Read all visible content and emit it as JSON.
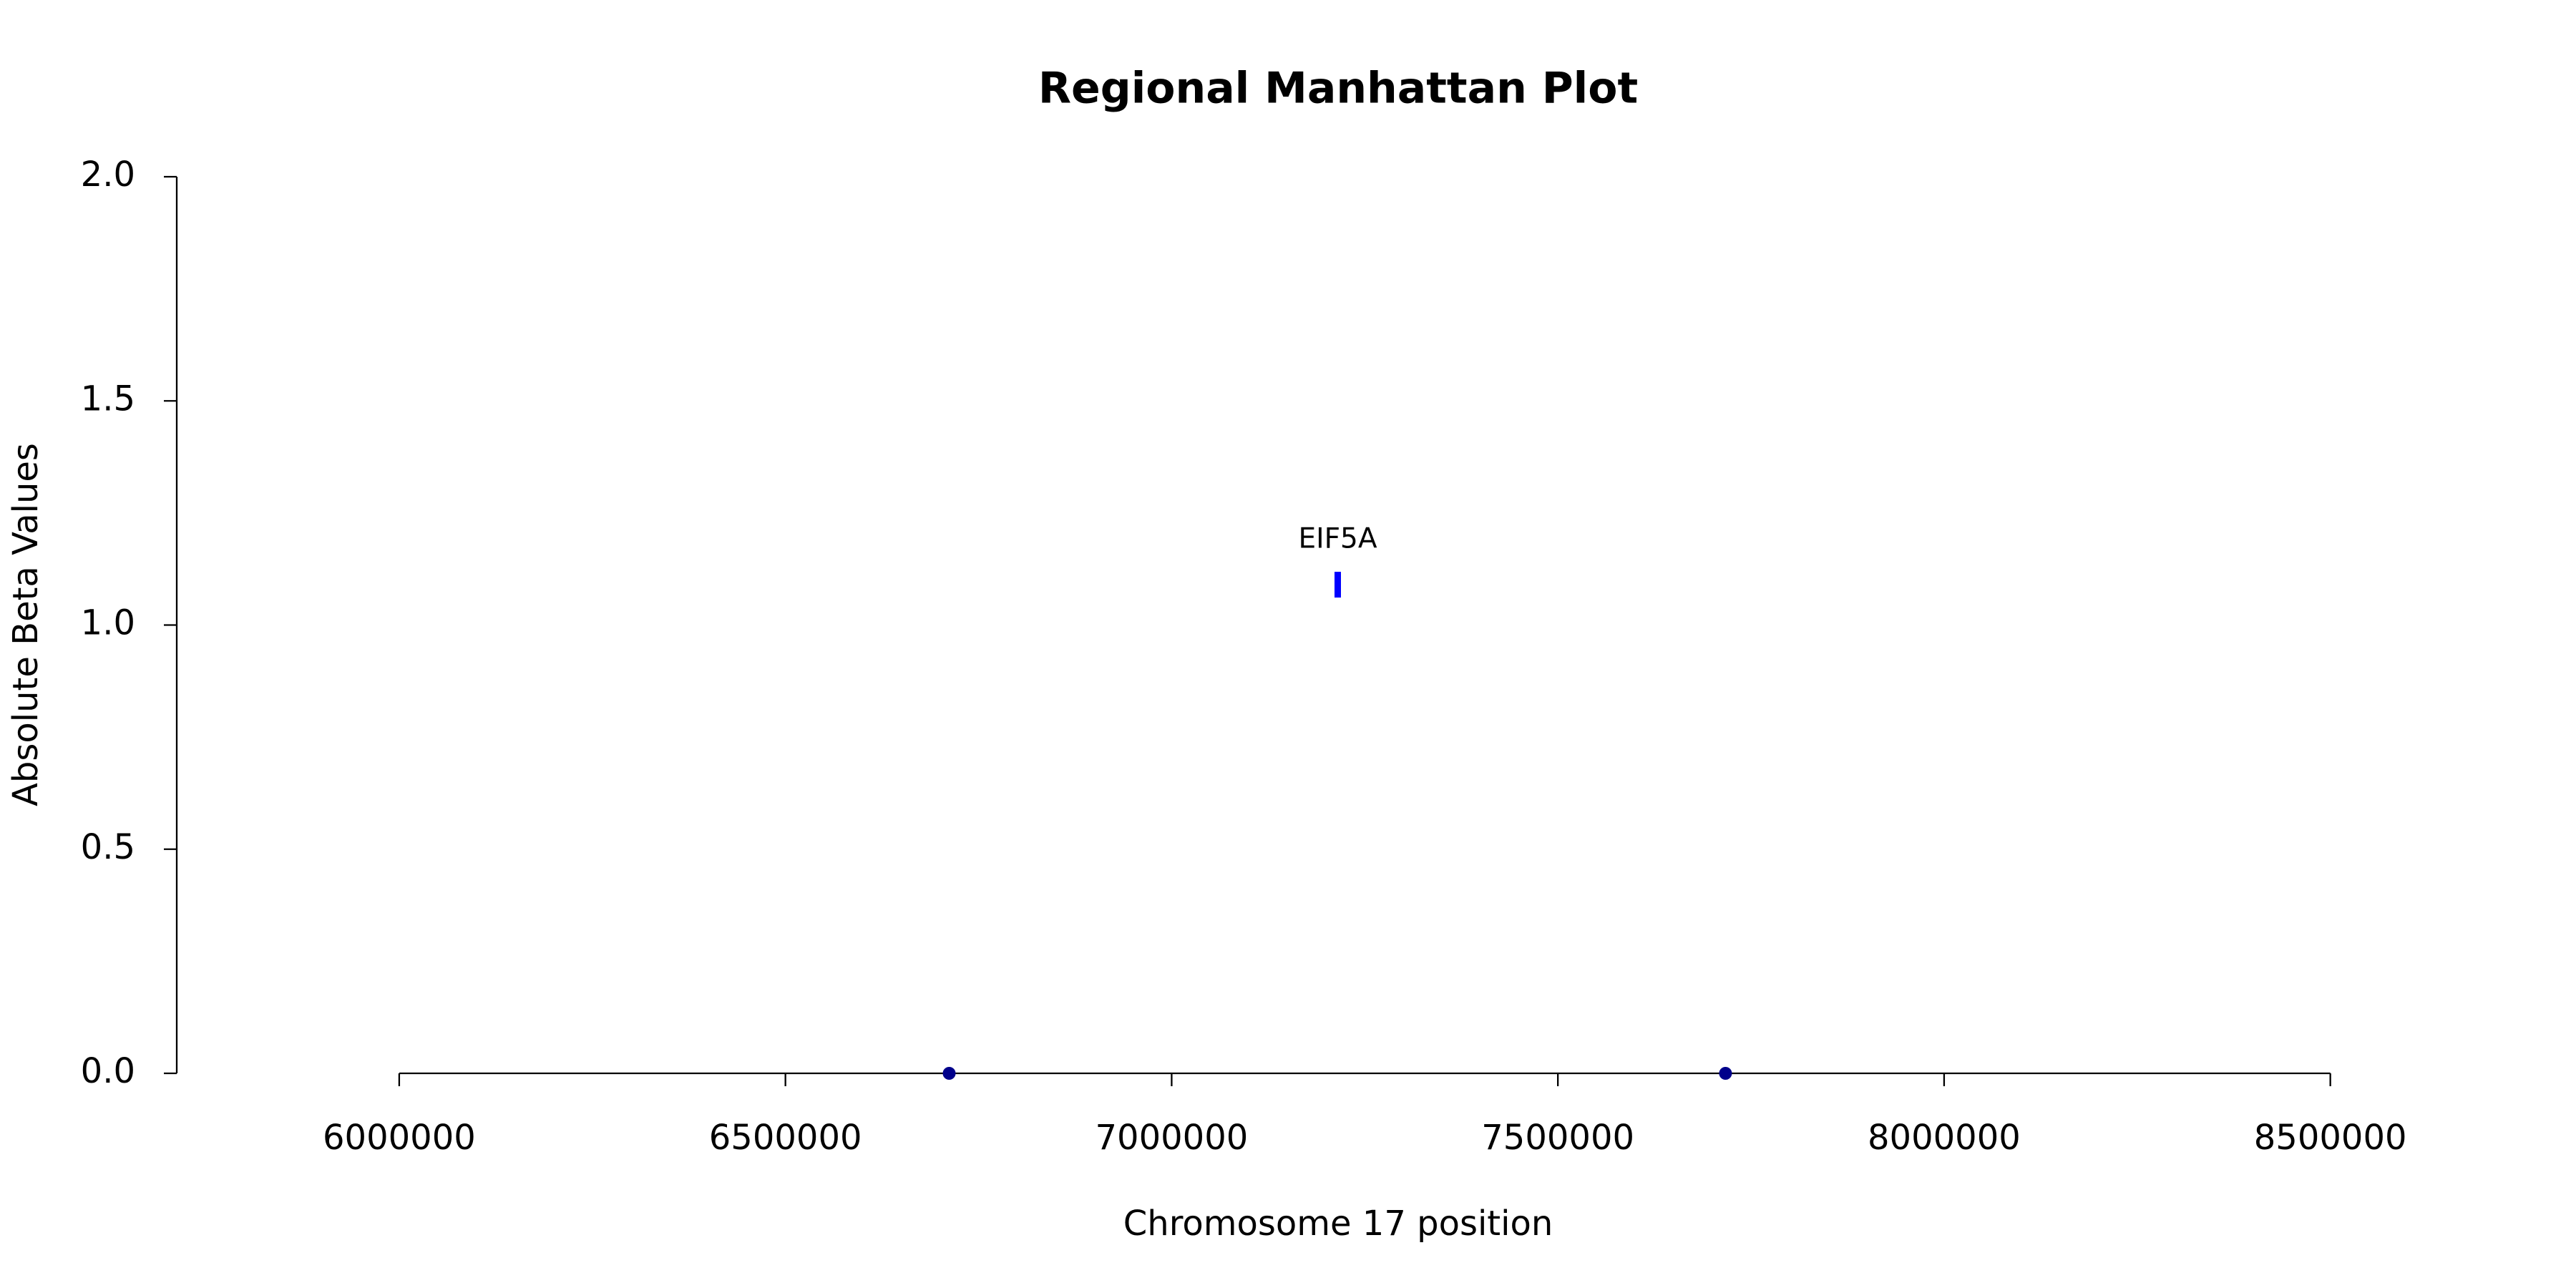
{
  "chart_data": {
    "type": "scatter",
    "title": "Regional Manhattan Plot",
    "xlabel": "Chromosome 17 position",
    "ylabel": "Absolute Beta Values",
    "series": [
      {
        "color": "#00008b",
        "marker": "dot",
        "x": [
          6712000,
          7717000
        ],
        "values": [
          0,
          0
        ]
      },
      {
        "color": "#0000ff",
        "marker": "bar",
        "x": [
          7215000
        ],
        "values": [
          1.09
        ],
        "labels": [
          "EIF5A"
        ]
      }
    ],
    "xlim": [
      5712000,
      8718000
    ],
    "xticks": [
      6000000,
      6500000,
      7000000,
      7500000,
      8000000,
      8500000
    ],
    "ylim": [
      0,
      2
    ],
    "yticks": [
      {
        "value": 0,
        "label": "0.0"
      },
      0.5,
      {
        "value": 1,
        "label": "1.0"
      },
      1.5,
      {
        "value": 2,
        "label": "2.0"
      }
    ],
    "grid": false
  }
}
